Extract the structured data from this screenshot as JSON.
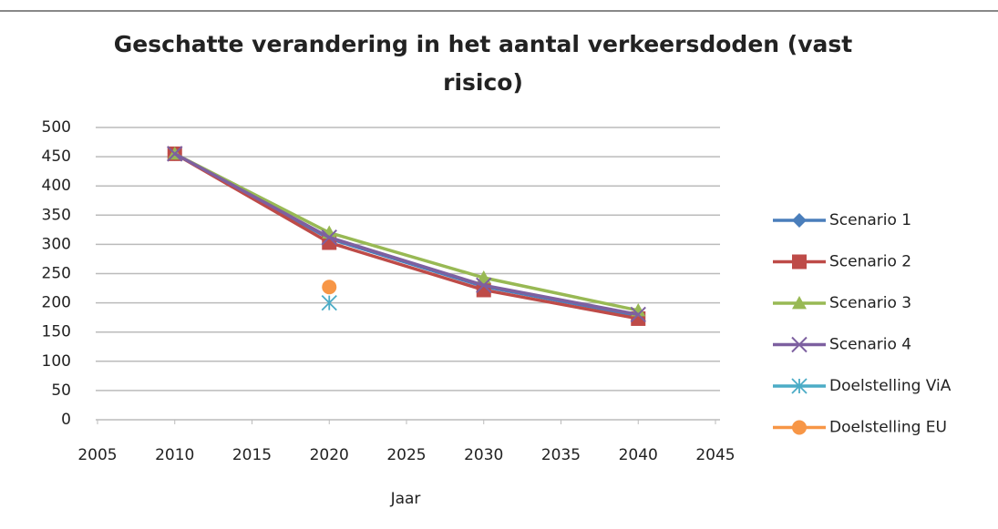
{
  "chart_data": {
    "type": "line",
    "title": "Geschatte verandering in het aantal verkeersdoden (vast risico)",
    "x_label": "Jaar",
    "x": [
      2010,
      2020,
      2030,
      2040
    ],
    "series": [
      {
        "name": "Scenario 1",
        "color": "#4a7ebb",
        "marker": "diamond",
        "values": [
          455,
          310,
          228,
          178
        ]
      },
      {
        "name": "Scenario 2",
        "color": "#be4b48",
        "marker": "square",
        "values": [
          455,
          303,
          222,
          173
        ]
      },
      {
        "name": "Scenario 3",
        "color": "#98b954",
        "marker": "triangle",
        "values": [
          455,
          320,
          243,
          187
        ]
      },
      {
        "name": "Scenario 4",
        "color": "#7d60a0",
        "marker": "x",
        "values": [
          455,
          312,
          230,
          180
        ]
      },
      {
        "name": "Doelstelling ViA",
        "color": "#4bacc6",
        "marker": "star",
        "values": [
          null,
          200,
          null,
          null
        ]
      },
      {
        "name": "Doelstelling EU",
        "color": "#f79646",
        "marker": "circle",
        "values": [
          null,
          227,
          null,
          null
        ]
      }
    ],
    "xlim": [
      2005,
      2045
    ],
    "xticks": [
      2005,
      2010,
      2015,
      2020,
      2025,
      2030,
      2035,
      2040,
      2045
    ],
    "ylim": [
      0,
      500
    ],
    "yticks": [
      0,
      50,
      100,
      150,
      200,
      250,
      300,
      350,
      400,
      450,
      500
    ],
    "grid": true,
    "legend": "right"
  }
}
